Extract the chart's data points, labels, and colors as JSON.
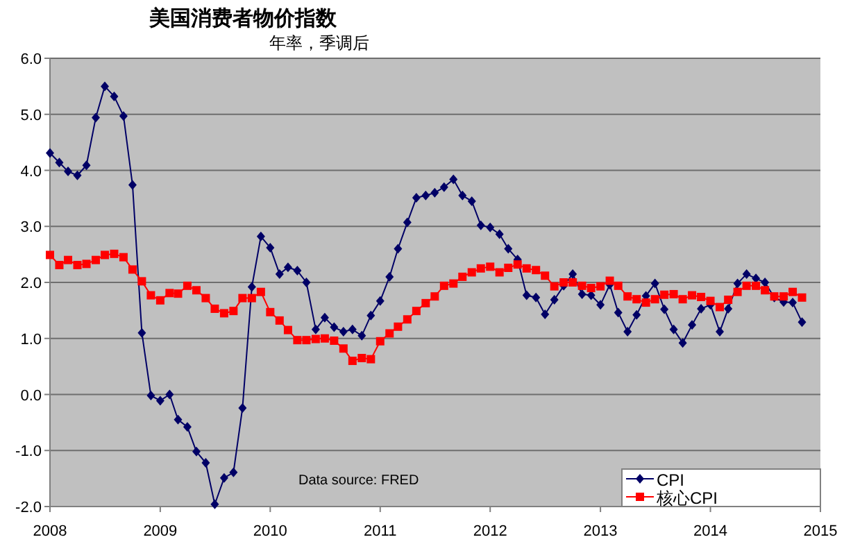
{
  "chart_data": {
    "type": "line",
    "title": "美国消费者物价指数",
    "subtitle": "年率，季调后",
    "annotations": [
      "Data source: FRED"
    ],
    "x": [
      "2008-01",
      "2008-02",
      "2008-03",
      "2008-04",
      "2008-05",
      "2008-06",
      "2008-07",
      "2008-08",
      "2008-09",
      "2008-10",
      "2008-11",
      "2008-12",
      "2009-01",
      "2009-02",
      "2009-03",
      "2009-04",
      "2009-05",
      "2009-06",
      "2009-07",
      "2009-08",
      "2009-09",
      "2009-10",
      "2009-11",
      "2009-12",
      "2010-01",
      "2010-02",
      "2010-03",
      "2010-04",
      "2010-05",
      "2010-06",
      "2010-07",
      "2010-08",
      "2010-09",
      "2010-10",
      "2010-11",
      "2010-12",
      "2011-01",
      "2011-02",
      "2011-03",
      "2011-04",
      "2011-05",
      "2011-06",
      "2011-07",
      "2011-08",
      "2011-09",
      "2011-10",
      "2011-11",
      "2011-12",
      "2012-01",
      "2012-02",
      "2012-03",
      "2012-04",
      "2012-05",
      "2012-06",
      "2012-07",
      "2012-08",
      "2012-09",
      "2012-10",
      "2012-11",
      "2012-12",
      "2013-01",
      "2013-02",
      "2013-03",
      "2013-04",
      "2013-05",
      "2013-06",
      "2013-07",
      "2013-08",
      "2013-09",
      "2013-10",
      "2013-11",
      "2013-12",
      "2014-01",
      "2014-02",
      "2014-03",
      "2014-04",
      "2014-05",
      "2014-06",
      "2014-07",
      "2014-08",
      "2014-09",
      "2014-10",
      "2014-11"
    ],
    "series": [
      {
        "name": "CPI",
        "color": "#000066",
        "marker": "diamond",
        "values": [
          4.31,
          4.14,
          3.98,
          3.91,
          4.09,
          4.94,
          5.5,
          5.32,
          4.97,
          3.74,
          1.1,
          -0.02,
          -0.11,
          0.0,
          -0.45,
          -0.58,
          -1.02,
          -1.22,
          -1.96,
          -1.49,
          -1.39,
          -0.24,
          1.92,
          2.82,
          2.62,
          2.15,
          2.27,
          2.21,
          2.0,
          1.16,
          1.37,
          1.2,
          1.12,
          1.16,
          1.05,
          1.41,
          1.67,
          2.1,
          2.6,
          3.07,
          3.51,
          3.55,
          3.6,
          3.7,
          3.84,
          3.55,
          3.45,
          3.02,
          2.98,
          2.86,
          2.6,
          2.41,
          1.77,
          1.73,
          1.43,
          1.69,
          1.94,
          2.15,
          1.79,
          1.77,
          1.6,
          1.96,
          1.46,
          1.12,
          1.42,
          1.76,
          1.98,
          1.52,
          1.16,
          0.92,
          1.24,
          1.53,
          1.6,
          1.12,
          1.53,
          1.98,
          2.15,
          2.07,
          2.0,
          1.73,
          1.65,
          1.64,
          1.29
        ]
      },
      {
        "name": "核心CPI",
        "color": "#ff0000",
        "marker": "square",
        "values": [
          2.49,
          2.31,
          2.4,
          2.31,
          2.33,
          2.4,
          2.49,
          2.51,
          2.45,
          2.23,
          2.02,
          1.77,
          1.68,
          1.81,
          1.8,
          1.94,
          1.86,
          1.72,
          1.53,
          1.45,
          1.49,
          1.72,
          1.72,
          1.83,
          1.47,
          1.32,
          1.15,
          0.97,
          0.97,
          0.99,
          1.0,
          0.96,
          0.82,
          0.6,
          0.65,
          0.63,
          0.95,
          1.09,
          1.21,
          1.34,
          1.49,
          1.63,
          1.75,
          1.94,
          1.98,
          2.1,
          2.18,
          2.25,
          2.28,
          2.18,
          2.26,
          2.32,
          2.25,
          2.22,
          2.12,
          1.93,
          2.0,
          2.0,
          1.94,
          1.9,
          1.93,
          2.03,
          1.94,
          1.75,
          1.7,
          1.64,
          1.7,
          1.78,
          1.79,
          1.7,
          1.77,
          1.74,
          1.67,
          1.56,
          1.69,
          1.83,
          1.94,
          1.94,
          1.86,
          1.75,
          1.75,
          1.83,
          1.73
        ]
      }
    ],
    "xlim": [
      "2008",
      "2015"
    ],
    "xticks": [
      "2008",
      "2009",
      "2010",
      "2011",
      "2012",
      "2013",
      "2014",
      "2015"
    ],
    "ylim": [
      -2,
      6
    ],
    "yticks": [
      {
        "value": -2,
        "label": "-2.0"
      },
      {
        "value": -1,
        "label": "-1.0"
      },
      {
        "value": 0,
        "label": "0.0"
      },
      {
        "value": 1,
        "label": "1.0"
      },
      {
        "value": 2,
        "label": "2.0"
      },
      {
        "value": 3,
        "label": "3.0"
      },
      {
        "value": 4,
        "label": "4.0"
      },
      {
        "value": 5,
        "label": "5.0"
      },
      {
        "value": 6,
        "label": "6.0"
      }
    ],
    "grid": "y",
    "legend": "bottom right",
    "line_style": "solid"
  }
}
